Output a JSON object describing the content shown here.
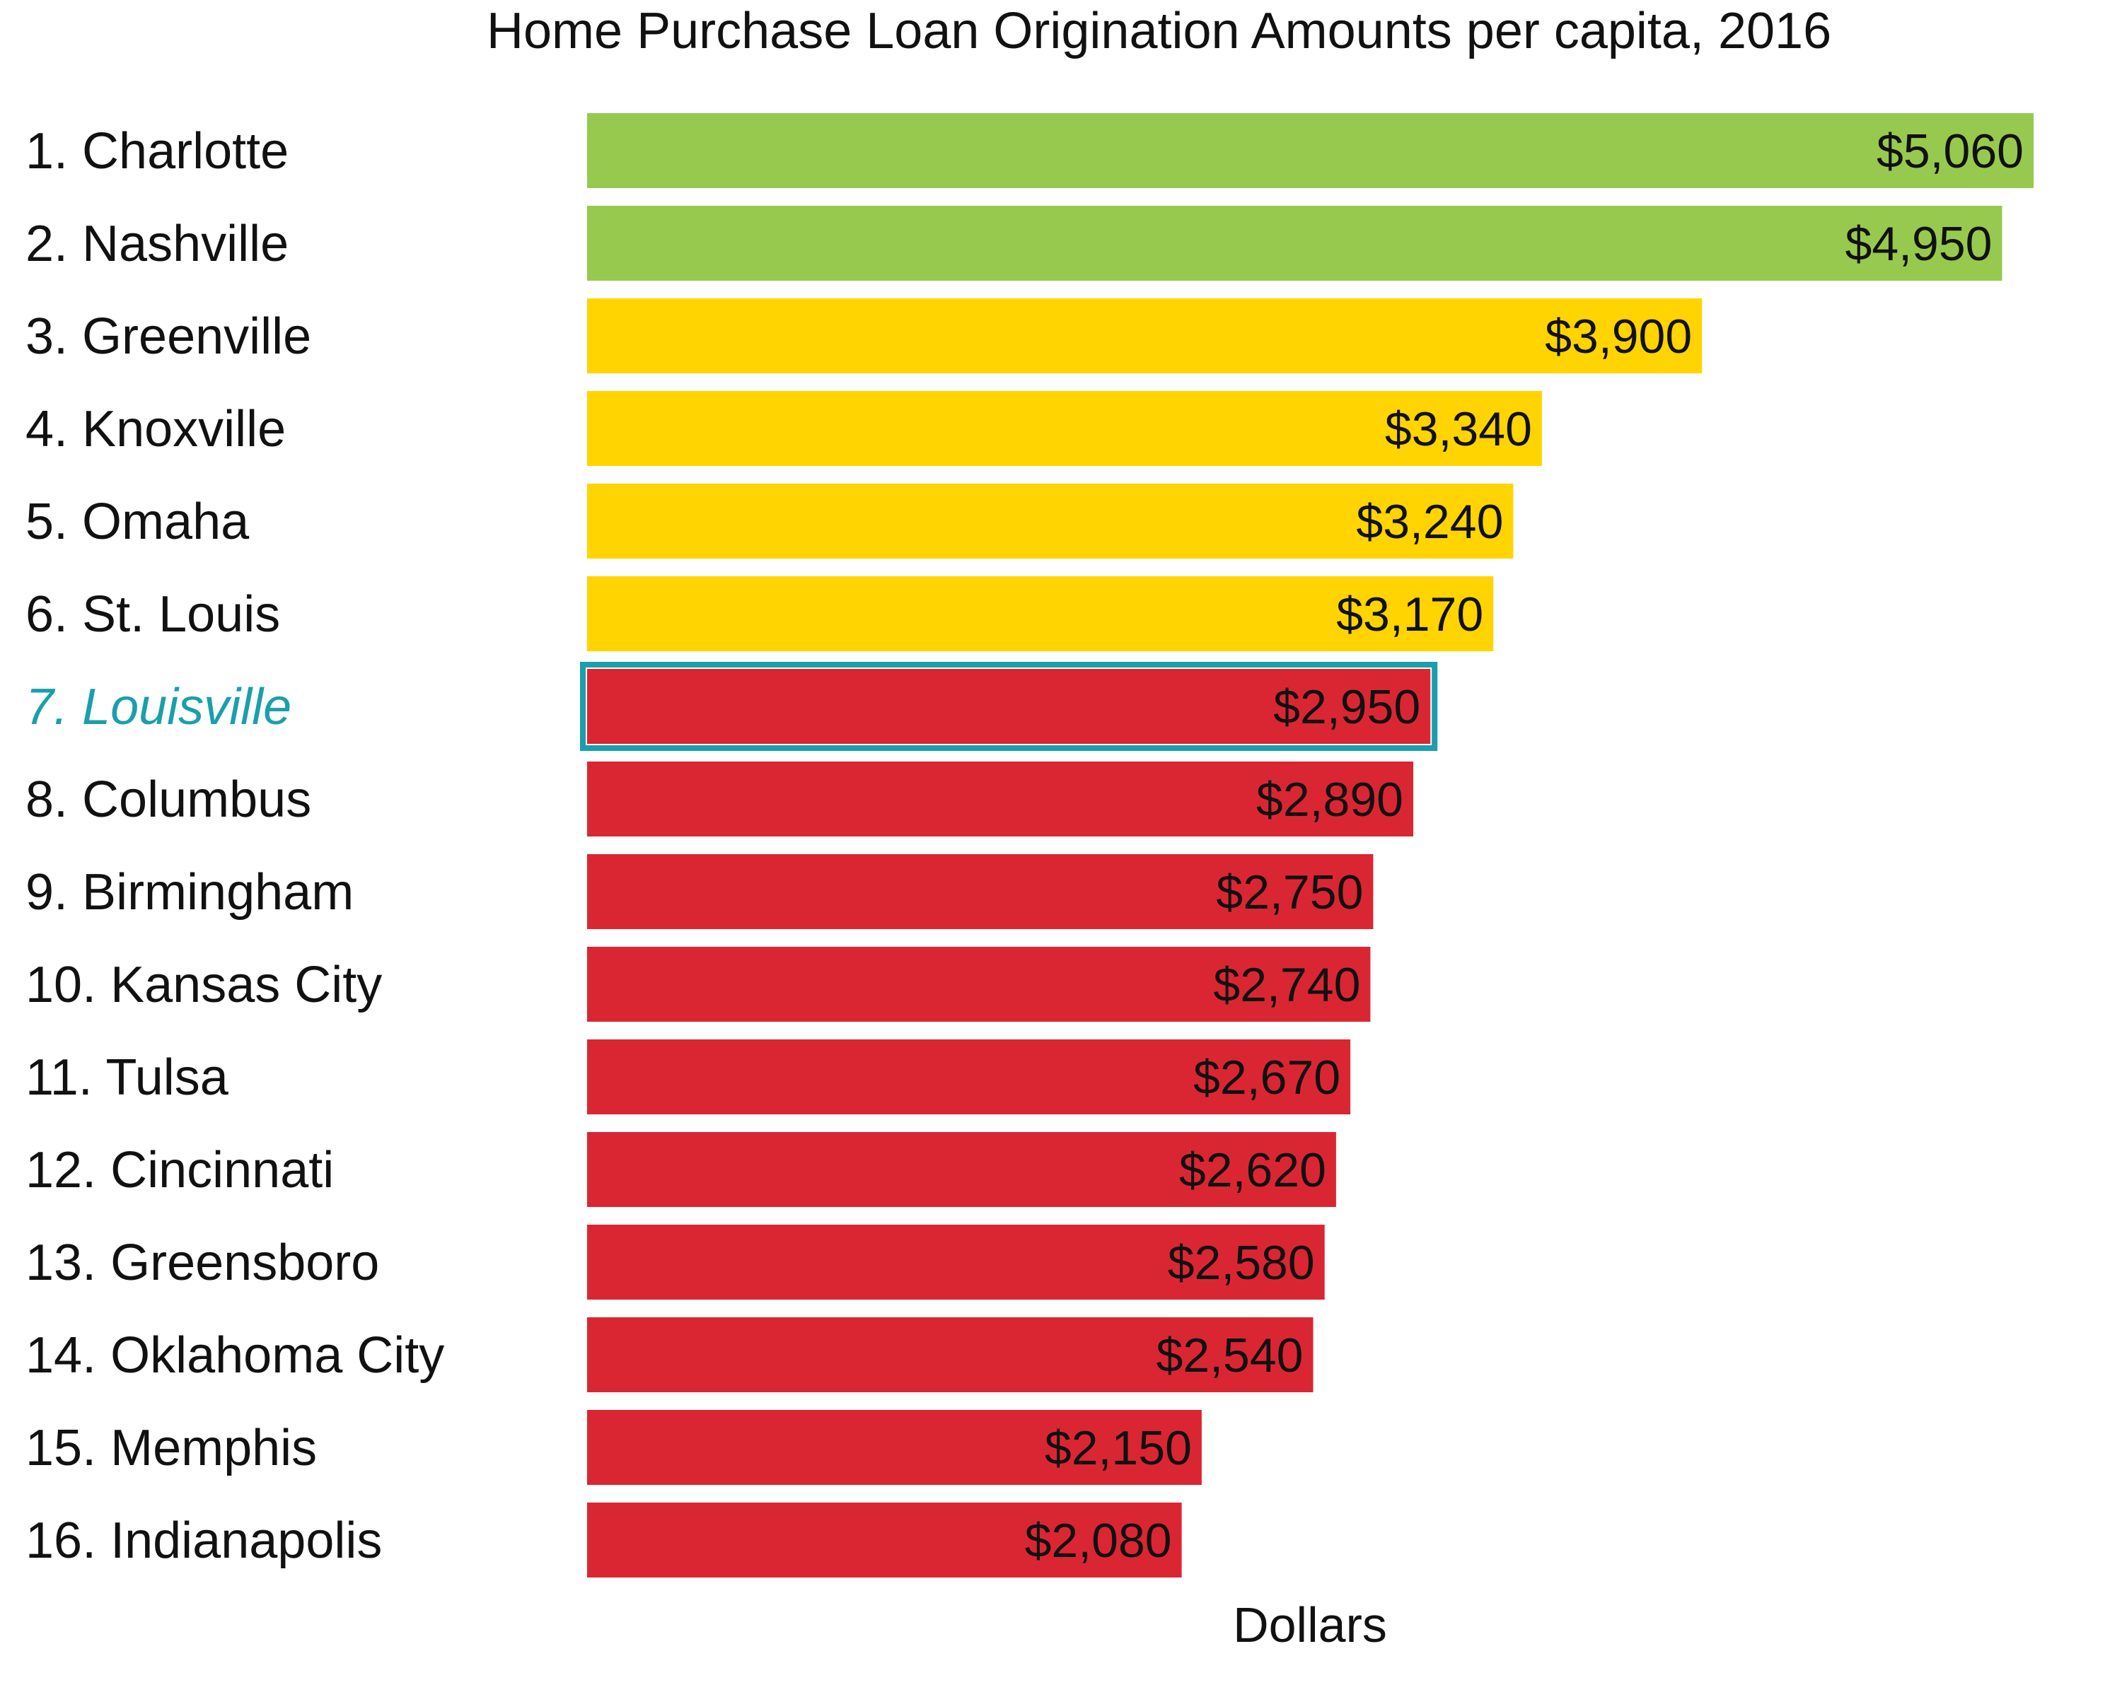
{
  "chart_data": {
    "type": "bar",
    "orientation": "horizontal",
    "title": "Home Purchase Loan Origination Amounts per capita, 2016",
    "xlabel": "Dollars",
    "ylabel": "",
    "xlim": [
      0,
      5060
    ],
    "grid": false,
    "legend": "none",
    "categories": [
      "1. Charlotte",
      "2. Nashville",
      "3. Greenville",
      "4. Knoxville",
      "5. Omaha",
      "6. St. Louis",
      "7. Louisville",
      "8. Columbus",
      "9. Birmingham",
      "10. Kansas City",
      "11. Tulsa",
      "12. Cincinnati",
      "13. Greensboro",
      "14. Oklahoma City",
      "15. Memphis",
      "16. Indianapolis"
    ],
    "values": [
      5060,
      4950,
      3900,
      3340,
      3240,
      3170,
      2950,
      2890,
      2750,
      2740,
      2670,
      2620,
      2580,
      2540,
      2150,
      2080
    ],
    "value_labels": [
      "$5,060",
      "$4,950",
      "$3,900",
      "$3,340",
      "$3,240",
      "$3,170",
      "$2,950",
      "$2,890",
      "$2,750",
      "$2,740",
      "$2,670",
      "$2,620",
      "$2,580",
      "$2,540",
      "$2,150",
      "$2,080"
    ],
    "tiers": [
      "green",
      "green",
      "yellow",
      "yellow",
      "yellow",
      "yellow",
      "red",
      "red",
      "red",
      "red",
      "red",
      "red",
      "red",
      "red",
      "red",
      "red"
    ],
    "tier_colors": {
      "green": "#97c94f",
      "yellow": "#ffd400",
      "red": "#da2633"
    },
    "highlight_index": 6,
    "highlight_color": "#1a9fab"
  }
}
